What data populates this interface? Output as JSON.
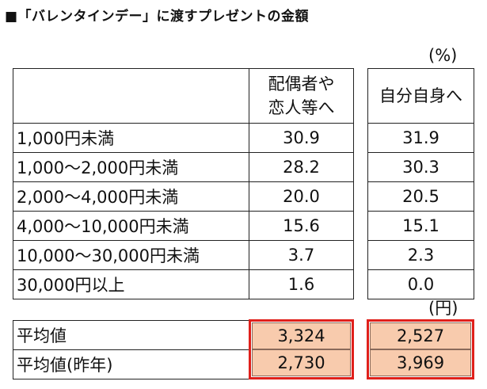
{
  "title": "■「バレンタインデー」に渡すプレゼントの金額",
  "unit_percent": "(%)",
  "unit_yen": "(円)",
  "chart_data": {
    "type": "table",
    "title": "■「バレンタインデー」に渡すプレゼントの金額",
    "columns": [
      "配偶者や恋人等へ",
      "自分自身へ"
    ],
    "col1_header": {
      "line1": "配偶者や",
      "line2": "恋人等へ"
    },
    "col2_header": "自分自身へ",
    "rows": [
      {
        "label": "1,000円未満",
        "spouse": "30.9",
        "self": "31.9"
      },
      {
        "label": "1,000～2,000円未満",
        "spouse": "28.2",
        "self": "30.3"
      },
      {
        "label": "2,000～4,000円未満",
        "spouse": "20.0",
        "self": "20.5"
      },
      {
        "label": "4,000～10,000円未満",
        "spouse": "15.6",
        "self": "15.1"
      },
      {
        "label": "10,000～30,000円未満",
        "spouse": "3.7",
        "self": "2.3"
      },
      {
        "label": "30,000円以上",
        "spouse": "1.6",
        "self": "0.0"
      }
    ],
    "averages": [
      {
        "label": "平均値",
        "spouse": "3,324",
        "self": "2,527"
      },
      {
        "label": "平均値(昨年)",
        "spouse": "2,730",
        "self": "3,969"
      }
    ],
    "highlight_color": "#f8cbad",
    "highlight_border_color": "#e0201b"
  }
}
